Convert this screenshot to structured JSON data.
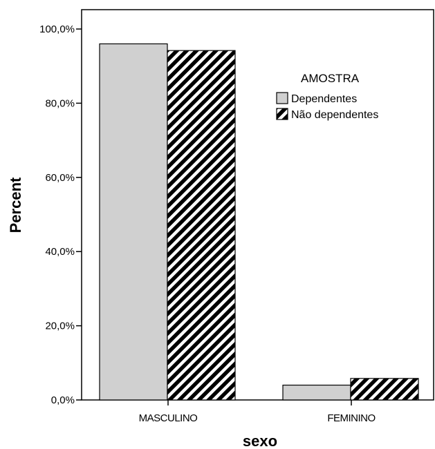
{
  "chart_data": {
    "type": "bar",
    "categories": [
      "MASCULINO",
      "FEMININO"
    ],
    "series": [
      {
        "name": "Dependentes",
        "values": [
          96.0,
          4.0
        ],
        "color": "#d0d0d0",
        "pattern": "solid"
      },
      {
        "name": "Não dependentes",
        "values": [
          94.2,
          5.8
        ],
        "color": "#000000",
        "pattern": "diagonal-stripes"
      }
    ],
    "title": "",
    "xlabel": "sexo",
    "ylabel": "Percent",
    "ylim": [
      0,
      100
    ],
    "yticks": [
      {
        "value": 0,
        "label": "0,0%"
      },
      {
        "value": 20,
        "label": "20,0%"
      },
      {
        "value": 40,
        "label": "40,0%"
      },
      {
        "value": 60,
        "label": "60,0%"
      },
      {
        "value": 80,
        "label": "80,0%"
      },
      {
        "value": 100,
        "label": "100,0%"
      }
    ],
    "grid": false,
    "legend": {
      "title": "AMOSTRA",
      "placement": "top-right"
    }
  }
}
